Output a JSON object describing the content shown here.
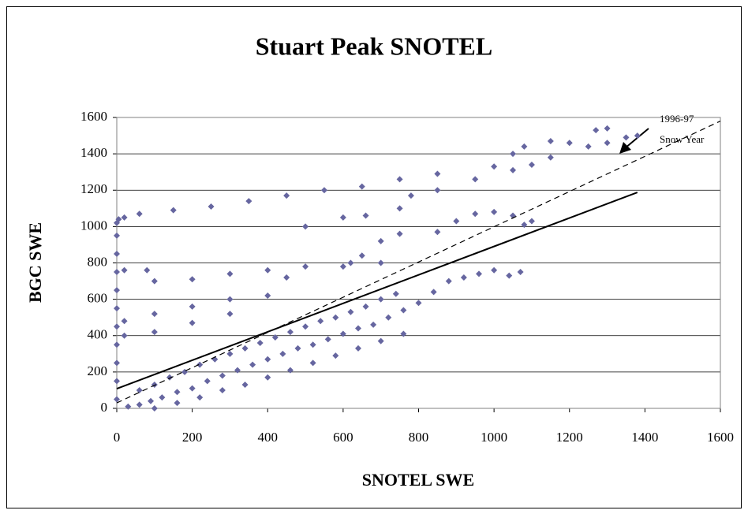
{
  "chart_data": {
    "type": "scatter",
    "title": "Stuart Peak SNOTEL",
    "x_label": "SNOTEL SWE",
    "y_label": "BGC SWE",
    "annotation": [
      "1996-97",
      "Snow Year"
    ],
    "color": "#6666a0",
    "grid": true,
    "xlim": [
      0,
      1600
    ],
    "ylim": [
      0,
      1600
    ],
    "xticks": [
      0,
      200,
      400,
      600,
      800,
      1000,
      1200,
      1400,
      1600
    ],
    "yticks": [
      0,
      200,
      400,
      600,
      800,
      1000,
      1200,
      1400,
      1600
    ],
    "x": [
      0,
      0,
      0,
      0,
      0,
      0,
      0,
      0,
      0,
      0,
      0,
      5,
      20,
      60,
      150,
      250,
      350,
      450,
      550,
      650,
      750,
      850,
      780,
      850,
      950,
      1050,
      1100,
      1150,
      1250,
      1300,
      1350,
      1380,
      1300,
      1270,
      1200,
      1150,
      1080,
      1050,
      1000,
      500,
      600,
      660,
      750,
      900,
      950,
      1000,
      1050,
      1100,
      1080,
      850,
      750,
      700,
      650,
      620,
      20,
      80,
      100,
      200,
      300,
      400,
      450,
      500,
      600,
      700,
      20,
      100,
      200,
      300,
      400,
      20,
      100,
      200,
      300,
      30,
      60,
      90,
      120,
      160,
      200,
      240,
      280,
      320,
      360,
      400,
      440,
      480,
      520,
      560,
      600,
      640,
      680,
      720,
      760,
      800,
      840,
      880,
      920,
      960,
      1000,
      1040,
      1070,
      60,
      100,
      140,
      180,
      220,
      260,
      300,
      340,
      380,
      420,
      460,
      500,
      540,
      580,
      620,
      660,
      700,
      740,
      100,
      160,
      220,
      280,
      340,
      400,
      460,
      520,
      580,
      640,
      700,
      760
    ],
    "values": [
      50,
      150,
      250,
      350,
      450,
      550,
      650,
      750,
      850,
      950,
      1020,
      1040,
      1050,
      1070,
      1090,
      1110,
      1140,
      1170,
      1200,
      1220,
      1260,
      1290,
      1170,
      1200,
      1260,
      1310,
      1340,
      1380,
      1440,
      1460,
      1490,
      1500,
      1540,
      1530,
      1460,
      1470,
      1440,
      1400,
      1330,
      1000,
      1050,
      1060,
      1100,
      1030,
      1070,
      1080,
      1060,
      1030,
      1010,
      970,
      960,
      920,
      840,
      800,
      760,
      760,
      700,
      710,
      740,
      760,
      720,
      780,
      780,
      800,
      480,
      520,
      560,
      600,
      620,
      400,
      420,
      470,
      520,
      10,
      20,
      40,
      60,
      90,
      110,
      150,
      180,
      210,
      240,
      270,
      300,
      330,
      350,
      380,
      410,
      440,
      460,
      500,
      540,
      580,
      640,
      700,
      720,
      740,
      760,
      730,
      750,
      100,
      130,
      170,
      200,
      240,
      270,
      300,
      330,
      360,
      390,
      420,
      450,
      480,
      500,
      530,
      560,
      600,
      630,
      0,
      30,
      60,
      100,
      130,
      170,
      210,
      250,
      290,
      330,
      370,
      410
    ],
    "trendlines": [
      {
        "x": [
          0,
          1380
        ],
        "values": [
          108,
          1188
        ],
        "style": "solid",
        "color": "#000000"
      },
      {
        "x": [
          0,
          1600
        ],
        "values": [
          30,
          1580
        ],
        "style": "dashed",
        "color": "#000000"
      }
    ]
  }
}
